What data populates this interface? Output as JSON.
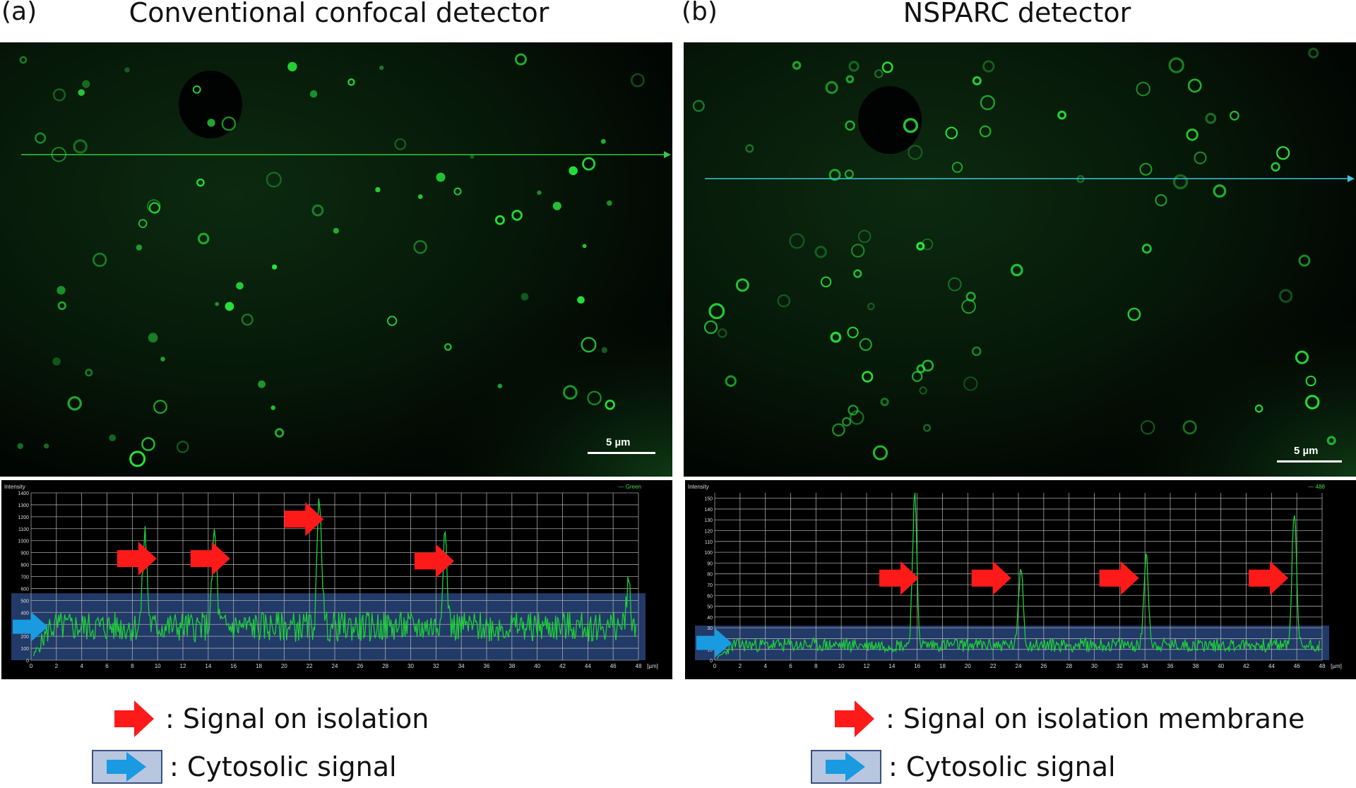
{
  "panels": [
    {
      "label": "(a)",
      "title": "Conventional confocal detector",
      "scale_bar": "5 µm",
      "plot": {
        "y_axis_title": "Intensity",
        "x_unit": "[µm]",
        "legend": "— Green",
        "y_ticks": [
          "0",
          "100",
          "200",
          "300",
          "400",
          "500",
          "600",
          "700",
          "800",
          "900",
          "1000",
          "1100",
          "1200",
          "1300",
          "1400"
        ],
        "x_ticks": [
          "0",
          "2",
          "4",
          "6",
          "8",
          "10",
          "12",
          "14",
          "16",
          "18",
          "20",
          "22",
          "24",
          "26",
          "28",
          "30",
          "32",
          "34",
          "36",
          "38",
          "40",
          "42",
          "44",
          "46",
          "48"
        ],
        "y_max": 1400,
        "x_max": 48,
        "baseline": 280,
        "band_top": 560,
        "peaks": [
          [
            9.0,
            1050
          ],
          [
            14.5,
            1060
          ],
          [
            22.8,
            1380
          ],
          [
            32.7,
            1050
          ],
          [
            47.2,
            620
          ]
        ],
        "arrows_x": [
          6.8,
          12.6,
          20.0,
          30.3
        ],
        "arrows_y": [
          850,
          850,
          1180,
          830
        ]
      }
    },
    {
      "label": "(b)",
      "title": "NSPARC detector",
      "scale_bar": "5 µm",
      "plot": {
        "y_axis_title": "Intensity",
        "x_unit": "[µm]",
        "legend": "— 488",
        "y_ticks": [
          "0",
          "10",
          "20",
          "30",
          "40",
          "50",
          "60",
          "70",
          "80",
          "90",
          "100",
          "110",
          "120",
          "130",
          "140",
          "150"
        ],
        "x_ticks": [
          "0",
          "2",
          "4",
          "6",
          "8",
          "10",
          "12",
          "14",
          "16",
          "18",
          "20",
          "22",
          "24",
          "26",
          "28",
          "30",
          "32",
          "34",
          "36",
          "38",
          "40",
          "42",
          "44",
          "46",
          "48"
        ],
        "y_max": 155,
        "x_max": 48,
        "baseline": 14,
        "band_top": 32,
        "peaks": [
          [
            15.8,
            152
          ],
          [
            24.2,
            88
          ],
          [
            34.1,
            100
          ],
          [
            45.8,
            138
          ]
        ],
        "arrows_x": [
          13.0,
          20.3,
          30.4,
          42.2
        ],
        "arrows_y": [
          76,
          76,
          76,
          76
        ]
      }
    }
  ],
  "legend": {
    "left": {
      "isolation": ": Signal on isolation",
      "cytosolic": ": Cytosolic signal"
    },
    "right": {
      "isolation": ": Signal on isolation membrane",
      "cytosolic": ": Cytosolic signal"
    }
  },
  "colors": {
    "signal_green": "#1fcf3a",
    "arrow_red": "#ff1a1a",
    "arrow_blue": "#1a9ae0",
    "band_blue": "#2d4e8a",
    "scan_line_a": "#36c83e",
    "scan_line_b": "#3ec6d8"
  }
}
